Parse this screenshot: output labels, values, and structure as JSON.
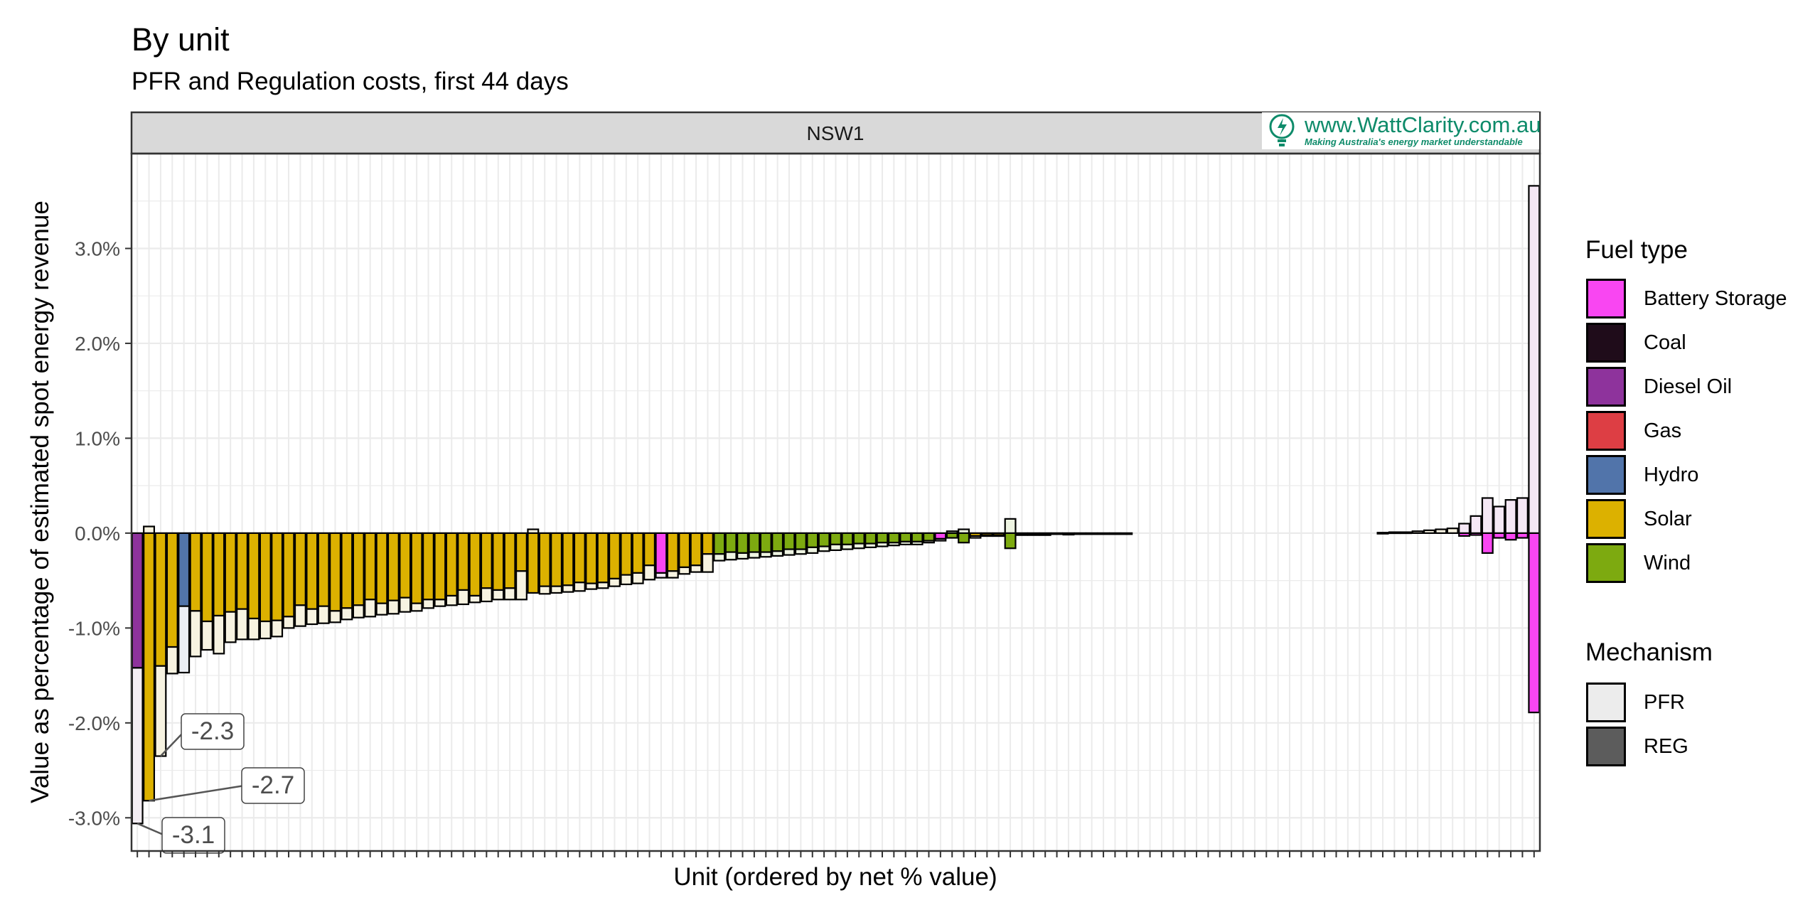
{
  "title": "By unit",
  "subtitle": "PFR and Regulation costs, first 44 days",
  "logo": {
    "text": "www.WattClarity.com.au",
    "tagline": "Making Australia's energy market understandable"
  },
  "legend": {
    "fuel_title": "Fuel type",
    "fuel_items": [
      {
        "label": "Battery Storage",
        "color": "#f946f2"
      },
      {
        "label": "Coal",
        "color": "#1f0c1a"
      },
      {
        "label": "Diesel Oil",
        "color": "#8e339c"
      },
      {
        "label": "Gas",
        "color": "#dd3e44"
      },
      {
        "label": "Hydro",
        "color": "#5174aa"
      },
      {
        "label": "Solar",
        "color": "#dcb100"
      },
      {
        "label": "Wind",
        "color": "#7daa10"
      }
    ],
    "mech_title": "Mechanism",
    "mech_items": [
      {
        "label": "PFR",
        "color": "#ececec"
      },
      {
        "label": "REG",
        "color": "#5c5c5c"
      }
    ]
  },
  "chart_data": {
    "type": "bar",
    "facet": "NSW1",
    "xlabel": "Unit (ordered by net % value)",
    "ylabel": "Value as percentage of estimated spot energy revenue",
    "ylim": [
      -3.35,
      4.0
    ],
    "yticks": [
      -3.0,
      -2.0,
      -1.0,
      0.0,
      1.0,
      2.0,
      3.0
    ],
    "ytick_labels": [
      "-3.0%",
      "-2.0%",
      "-1.0%",
      "0.0%",
      "1.0%",
      "2.0%",
      "3.0%"
    ],
    "grid": true,
    "stacking": "positive and negative parts stacked separately",
    "series_names": [
      "PFR",
      "REG"
    ],
    "fuel_colors": {
      "Battery": "#f946f2",
      "Diesel": "#8e339c",
      "Hydro": "#5174aa",
      "Solar": "#dcb100",
      "Wind": "#7daa10"
    },
    "mech_fill_by_fuel": {
      "Battery": "#f5e8f5",
      "Diesel": "#f3edf3",
      "Hydro": "#ebeef4",
      "Solar": "#f7f3e1",
      "Wind": "#eef4e2"
    },
    "units": [
      {
        "fuel": "Diesel",
        "reg": -1.42,
        "pfr": -1.64
      },
      {
        "fuel": "Solar",
        "reg": -2.82,
        "pfr": 0.07
      },
      {
        "fuel": "Solar",
        "reg": -1.4,
        "pfr": -0.95
      },
      {
        "fuel": "Solar",
        "reg": -1.2,
        "pfr": -0.28
      },
      {
        "fuel": "Hydro",
        "reg": -0.77,
        "pfr": -0.7
      },
      {
        "fuel": "Solar",
        "reg": -0.82,
        "pfr": -0.48
      },
      {
        "fuel": "Solar",
        "reg": -0.93,
        "pfr": -0.3
      },
      {
        "fuel": "Solar",
        "reg": -0.87,
        "pfr": -0.4
      },
      {
        "fuel": "Solar",
        "reg": -0.83,
        "pfr": -0.32
      },
      {
        "fuel": "Solar",
        "reg": -0.8,
        "pfr": -0.32
      },
      {
        "fuel": "Solar",
        "reg": -0.9,
        "pfr": -0.22
      },
      {
        "fuel": "Solar",
        "reg": -0.93,
        "pfr": -0.18
      },
      {
        "fuel": "Solar",
        "reg": -0.92,
        "pfr": -0.17
      },
      {
        "fuel": "Solar",
        "reg": -0.88,
        "pfr": -0.12
      },
      {
        "fuel": "Solar",
        "reg": -0.76,
        "pfr": -0.22
      },
      {
        "fuel": "Solar",
        "reg": -0.8,
        "pfr": -0.16
      },
      {
        "fuel": "Solar",
        "reg": -0.77,
        "pfr": -0.18
      },
      {
        "fuel": "Solar",
        "reg": -0.82,
        "pfr": -0.12
      },
      {
        "fuel": "Solar",
        "reg": -0.79,
        "pfr": -0.12
      },
      {
        "fuel": "Solar",
        "reg": -0.76,
        "pfr": -0.13
      },
      {
        "fuel": "Solar",
        "reg": -0.7,
        "pfr": -0.18
      },
      {
        "fuel": "Solar",
        "reg": -0.74,
        "pfr": -0.12
      },
      {
        "fuel": "Solar",
        "reg": -0.71,
        "pfr": -0.14
      },
      {
        "fuel": "Solar",
        "reg": -0.68,
        "pfr": -0.15
      },
      {
        "fuel": "Solar",
        "reg": -0.74,
        "pfr": -0.08
      },
      {
        "fuel": "Solar",
        "reg": -0.7,
        "pfr": -0.09
      },
      {
        "fuel": "Solar",
        "reg": -0.7,
        "pfr": -0.07
      },
      {
        "fuel": "Solar",
        "reg": -0.66,
        "pfr": -0.1
      },
      {
        "fuel": "Solar",
        "reg": -0.6,
        "pfr": -0.15
      },
      {
        "fuel": "Solar",
        "reg": -0.66,
        "pfr": -0.07
      },
      {
        "fuel": "Solar",
        "reg": -0.58,
        "pfr": -0.14
      },
      {
        "fuel": "Solar",
        "reg": -0.6,
        "pfr": -0.1
      },
      {
        "fuel": "Solar",
        "reg": -0.58,
        "pfr": -0.12
      },
      {
        "fuel": "Solar",
        "reg": -0.4,
        "pfr": -0.3
      },
      {
        "fuel": "Solar",
        "reg": -0.63,
        "pfr": 0.04
      },
      {
        "fuel": "Solar",
        "reg": -0.56,
        "pfr": -0.08
      },
      {
        "fuel": "Solar",
        "reg": -0.56,
        "pfr": -0.07
      },
      {
        "fuel": "Solar",
        "reg": -0.55,
        "pfr": -0.07
      },
      {
        "fuel": "Solar",
        "reg": -0.52,
        "pfr": -0.09
      },
      {
        "fuel": "Solar",
        "reg": -0.53,
        "pfr": -0.06
      },
      {
        "fuel": "Solar",
        "reg": -0.52,
        "pfr": -0.06
      },
      {
        "fuel": "Solar",
        "reg": -0.48,
        "pfr": -0.08
      },
      {
        "fuel": "Solar",
        "reg": -0.44,
        "pfr": -0.1
      },
      {
        "fuel": "Solar",
        "reg": -0.42,
        "pfr": -0.11
      },
      {
        "fuel": "Solar",
        "reg": -0.34,
        "pfr": -0.15
      },
      {
        "fuel": "Battery",
        "reg": -0.42,
        "pfr": -0.05
      },
      {
        "fuel": "Solar",
        "reg": -0.4,
        "pfr": -0.07
      },
      {
        "fuel": "Solar",
        "reg": -0.36,
        "pfr": -0.07
      },
      {
        "fuel": "Solar",
        "reg": -0.34,
        "pfr": -0.07
      },
      {
        "fuel": "Solar",
        "reg": -0.22,
        "pfr": -0.19
      },
      {
        "fuel": "Wind",
        "reg": -0.22,
        "pfr": -0.07
      },
      {
        "fuel": "Wind",
        "reg": -0.2,
        "pfr": -0.08
      },
      {
        "fuel": "Wind",
        "reg": -0.21,
        "pfr": -0.06
      },
      {
        "fuel": "Wind",
        "reg": -0.2,
        "pfr": -0.06
      },
      {
        "fuel": "Wind",
        "reg": -0.2,
        "pfr": -0.05
      },
      {
        "fuel": "Wind",
        "reg": -0.19,
        "pfr": -0.05
      },
      {
        "fuel": "Wind",
        "reg": -0.17,
        "pfr": -0.06
      },
      {
        "fuel": "Wind",
        "reg": -0.17,
        "pfr": -0.05
      },
      {
        "fuel": "Wind",
        "reg": -0.15,
        "pfr": -0.06
      },
      {
        "fuel": "Wind",
        "reg": -0.14,
        "pfr": -0.05
      },
      {
        "fuel": "Wind",
        "reg": -0.12,
        "pfr": -0.06
      },
      {
        "fuel": "Wind",
        "reg": -0.12,
        "pfr": -0.05
      },
      {
        "fuel": "Wind",
        "reg": -0.11,
        "pfr": -0.05
      },
      {
        "fuel": "Wind",
        "reg": -0.11,
        "pfr": -0.04
      },
      {
        "fuel": "Wind",
        "reg": -0.1,
        "pfr": -0.04
      },
      {
        "fuel": "Wind",
        "reg": -0.1,
        "pfr": -0.03
      },
      {
        "fuel": "Wind",
        "reg": -0.09,
        "pfr": -0.03
      },
      {
        "fuel": "Wind",
        "reg": -0.09,
        "pfr": -0.03
      },
      {
        "fuel": "Wind",
        "reg": -0.08,
        "pfr": -0.02
      },
      {
        "fuel": "Battery",
        "reg": -0.06,
        "pfr": -0.02
      },
      {
        "fuel": "Wind",
        "reg": -0.05,
        "pfr": 0.02
      },
      {
        "fuel": "Wind",
        "reg": -0.1,
        "pfr": 0.04
      },
      {
        "fuel": "Solar",
        "reg": -0.03,
        "pfr": -0.02
      },
      {
        "fuel": "Solar",
        "reg": -0.02,
        "pfr": -0.01
      },
      {
        "fuel": "Solar",
        "reg": -0.02,
        "pfr": -0.01
      },
      {
        "fuel": "Wind",
        "reg": -0.16,
        "pfr": 0.15
      },
      {
        "fuel": "Solar",
        "reg": -0.01,
        "pfr": -0.01
      },
      {
        "fuel": "Solar",
        "reg": -0.01,
        "pfr": -0.01
      },
      {
        "fuel": "Solar",
        "reg": -0.01,
        "pfr": -0.005
      },
      {
        "fuel": "Solar",
        "reg": -0.01,
        "pfr": 0.0
      },
      {
        "fuel": "Solar",
        "reg": -0.005,
        "pfr": -0.005
      },
      {
        "fuel": "Solar",
        "reg": -0.005,
        "pfr": 0.0
      },
      {
        "fuel": "Solar",
        "reg": -0.005,
        "pfr": 0.0
      },
      {
        "fuel": "Solar",
        "reg": -0.005,
        "pfr": 0.0
      },
      {
        "fuel": "Solar",
        "reg": -0.005,
        "pfr": 0.0
      },
      {
        "fuel": "Solar",
        "reg": -0.005,
        "pfr": 0.0
      },
      {
        "fuel": "Solar",
        "reg": 0.0,
        "pfr": 0.0
      },
      {
        "fuel": "Solar",
        "reg": 0.0,
        "pfr": 0.0
      },
      {
        "fuel": "Solar",
        "reg": 0.0,
        "pfr": 0.0
      },
      {
        "fuel": "Solar",
        "reg": 0.0,
        "pfr": 0.0
      },
      {
        "fuel": "Solar",
        "reg": 0.0,
        "pfr": 0.0
      },
      {
        "fuel": "Solar",
        "reg": 0.0,
        "pfr": 0.0
      },
      {
        "fuel": "Solar",
        "reg": 0.0,
        "pfr": 0.0
      },
      {
        "fuel": "Solar",
        "reg": 0.0,
        "pfr": 0.0
      },
      {
        "fuel": "Solar",
        "reg": 0.0,
        "pfr": 0.0
      },
      {
        "fuel": "Solar",
        "reg": 0.0,
        "pfr": 0.0
      },
      {
        "fuel": "Solar",
        "reg": 0.0,
        "pfr": 0.0
      },
      {
        "fuel": "Solar",
        "reg": 0.0,
        "pfr": 0.0
      },
      {
        "fuel": "Solar",
        "reg": 0.0,
        "pfr": 0.0
      },
      {
        "fuel": "Solar",
        "reg": 0.0,
        "pfr": 0.0
      },
      {
        "fuel": "Solar",
        "reg": 0.0,
        "pfr": 0.0
      },
      {
        "fuel": "Solar",
        "reg": 0.0,
        "pfr": 0.0
      },
      {
        "fuel": "Solar",
        "reg": 0.0,
        "pfr": 0.0
      },
      {
        "fuel": "Solar",
        "reg": 0.0,
        "pfr": 0.0
      },
      {
        "fuel": "Solar",
        "reg": 0.0,
        "pfr": 0.0
      },
      {
        "fuel": "Solar",
        "reg": 0.0,
        "pfr": 0.0
      },
      {
        "fuel": "Solar",
        "reg": 0.0,
        "pfr": 0.0
      },
      {
        "fuel": "Solar",
        "reg": 0.0,
        "pfr": 0.005
      },
      {
        "fuel": "Solar",
        "reg": 0.0,
        "pfr": 0.01
      },
      {
        "fuel": "Solar",
        "reg": 0.0,
        "pfr": 0.01
      },
      {
        "fuel": "Solar",
        "reg": 0.0,
        "pfr": 0.02
      },
      {
        "fuel": "Solar",
        "reg": 0.0,
        "pfr": 0.03
      },
      {
        "fuel": "Solar",
        "reg": 0.0,
        "pfr": 0.04
      },
      {
        "fuel": "Solar",
        "reg": 0.0,
        "pfr": 0.05
      },
      {
        "fuel": "Battery",
        "reg": -0.03,
        "pfr": 0.1
      },
      {
        "fuel": "Battery",
        "reg": -0.02,
        "pfr": 0.18
      },
      {
        "fuel": "Battery",
        "reg": -0.21,
        "pfr": 0.37
      },
      {
        "fuel": "Battery",
        "reg": -0.05,
        "pfr": 0.28
      },
      {
        "fuel": "Battery",
        "reg": -0.07,
        "pfr": 0.35
      },
      {
        "fuel": "Battery",
        "reg": -0.05,
        "pfr": 0.37
      },
      {
        "fuel": "Battery",
        "reg": -1.89,
        "pfr": 3.66
      }
    ],
    "annotations": [
      {
        "unit_index": 0,
        "label": "-3.1"
      },
      {
        "unit_index": 1,
        "label": "-2.7"
      },
      {
        "unit_index": 2,
        "label": "-2.3"
      }
    ]
  }
}
